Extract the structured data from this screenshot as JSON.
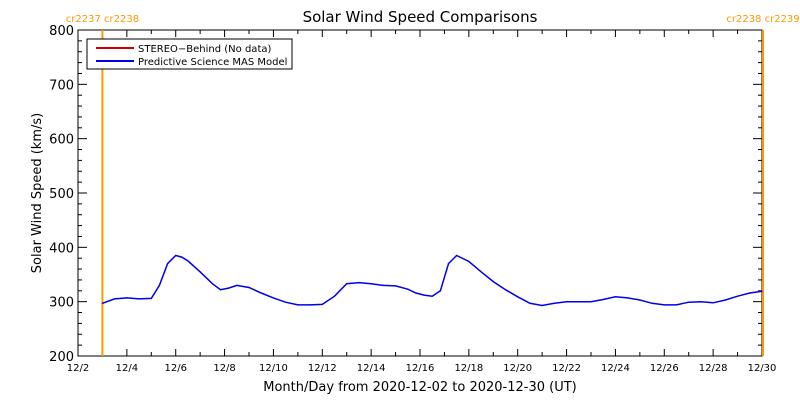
{
  "chart_data": {
    "type": "line",
    "title": "Solar Wind Speed Comparisons",
    "xlabel": "Month/Day from 2020-12-02 to 2020-12-30 (UT)",
    "ylabel": "Solar Wind Speed (km/s)",
    "xlim": [
      "2020-12-02",
      "2020-12-30"
    ],
    "ylim": [
      200,
      800
    ],
    "x_tick_labels": [
      "12/2",
      "12/4",
      "12/6",
      "12/8",
      "12/10",
      "12/12",
      "12/14",
      "12/16",
      "12/18",
      "12/20",
      "12/22",
      "12/24",
      "12/26",
      "12/28",
      "12/30"
    ],
    "y_ticks": [
      200,
      300,
      400,
      500,
      600,
      700,
      800
    ],
    "y_tick_labels": [
      "200",
      "300",
      "400",
      "500",
      "600",
      "700",
      "800"
    ],
    "grid": false,
    "legend_position": "top-left",
    "series": [
      {
        "name": "STEREO−Behind (No data)",
        "color": "#cc0000",
        "x": [],
        "values": []
      },
      {
        "name": "Predictive Science MAS Model",
        "color": "#0000ee",
        "x": [
          "2020-12-03 00:00",
          "2020-12-03 12:00",
          "2020-12-04 00:00",
          "2020-12-04 12:00",
          "2020-12-05 00:00",
          "2020-12-05 08:00",
          "2020-12-05 16:00",
          "2020-12-06 00:00",
          "2020-12-06 06:00",
          "2020-12-06 12:00",
          "2020-12-07 00:00",
          "2020-12-07 12:00",
          "2020-12-07 20:00",
          "2020-12-08 04:00",
          "2020-12-08 12:00",
          "2020-12-09 00:00",
          "2020-12-09 12:00",
          "2020-12-10 00:00",
          "2020-12-10 12:00",
          "2020-12-11 00:00",
          "2020-12-11 12:00",
          "2020-12-12 00:00",
          "2020-12-12 12:00",
          "2020-12-13 00:00",
          "2020-12-13 12:00",
          "2020-12-14 00:00",
          "2020-12-14 12:00",
          "2020-12-15 00:00",
          "2020-12-15 12:00",
          "2020-12-15 20:00",
          "2020-12-16 04:00",
          "2020-12-16 12:00",
          "2020-12-16 20:00",
          "2020-12-17 04:00",
          "2020-12-17 12:00",
          "2020-12-18 00:00",
          "2020-12-18 12:00",
          "2020-12-19 00:00",
          "2020-12-19 12:00",
          "2020-12-20 00:00",
          "2020-12-20 12:00",
          "2020-12-21 00:00",
          "2020-12-21 12:00",
          "2020-12-22 00:00",
          "2020-12-22 12:00",
          "2020-12-23 00:00",
          "2020-12-23 12:00",
          "2020-12-24 00:00",
          "2020-12-24 12:00",
          "2020-12-25 00:00",
          "2020-12-25 12:00",
          "2020-12-26 00:00",
          "2020-12-26 12:00",
          "2020-12-27 00:00",
          "2020-12-27 12:00",
          "2020-12-28 00:00",
          "2020-12-28 12:00",
          "2020-12-29 00:00",
          "2020-12-29 12:00",
          "2020-12-30 00:00"
        ],
        "values": [
          297,
          305,
          307,
          305,
          306,
          330,
          370,
          385,
          382,
          375,
          355,
          333,
          322,
          325,
          330,
          326,
          316,
          307,
          299,
          294,
          294,
          295,
          310,
          333,
          335,
          333,
          330,
          329,
          323,
          316,
          312,
          310,
          320,
          370,
          385,
          374,
          355,
          337,
          322,
          309,
          297,
          293,
          297,
          300,
          300,
          300,
          304,
          309,
          307,
          303,
          297,
          294,
          294,
          299,
          300,
          298,
          303,
          310,
          316,
          319
        ]
      }
    ],
    "annotations": {
      "left_marker_label": "cr2237 cr2238",
      "right_marker_label": "cr2238 cr2239",
      "left_marker_x": "2020-12-03 00:00",
      "right_marker_x": "2020-12-30 01:00",
      "marker_color": "#ff9900"
    }
  }
}
